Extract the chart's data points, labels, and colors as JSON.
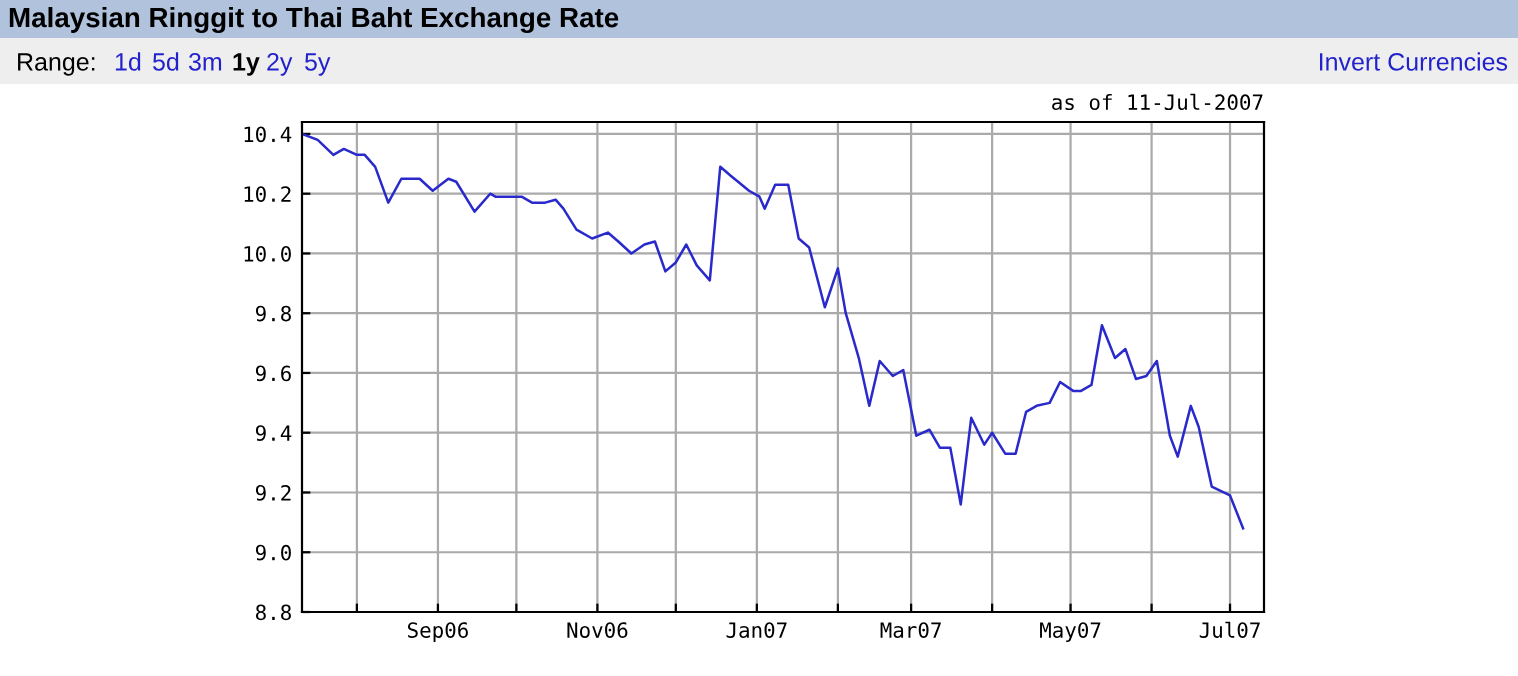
{
  "chart_data": {
    "type": "line",
    "title": "Malaysian Ringgit to Thai Baht Exchange Rate",
    "annotations": [
      "Range:",
      "1d",
      "5d",
      "3m",
      "1y",
      "2y",
      "5y",
      "Invert Currencies",
      "as of 11-Jul-2007"
    ],
    "x": [
      "2006-07-11",
      "2006-07-17",
      "2006-07-23",
      "2006-07-27",
      "2006-08-01",
      "2006-08-04",
      "2006-08-08",
      "2006-08-13",
      "2006-08-18",
      "2006-08-25",
      "2006-08-30",
      "2006-09-02",
      "2006-09-05",
      "2006-09-08",
      "2006-09-15",
      "2006-09-21",
      "2006-09-23",
      "2006-10-03",
      "2006-10-07",
      "2006-10-12",
      "2006-10-16",
      "2006-10-19",
      "2006-10-24",
      "2006-10-30",
      "2006-11-05",
      "2006-11-09",
      "2006-11-14",
      "2006-11-19",
      "2006-11-23",
      "2006-11-27",
      "2006-12-01",
      "2006-12-05",
      "2006-12-09",
      "2006-12-14",
      "2006-12-18",
      "2006-12-22",
      "2006-12-29",
      "2007-01-02",
      "2007-01-04",
      "2007-01-08",
      "2007-01-13",
      "2007-01-17",
      "2007-01-21",
      "2007-01-27",
      "2007-02-01",
      "2007-02-04",
      "2007-02-09",
      "2007-02-13",
      "2007-02-17",
      "2007-02-22",
      "2007-02-26",
      "2007-03-03",
      "2007-03-08",
      "2007-03-12",
      "2007-03-16",
      "2007-03-20",
      "2007-03-24",
      "2007-03-29",
      "2007-04-01",
      "2007-04-06",
      "2007-04-10",
      "2007-04-14",
      "2007-04-18",
      "2007-04-23",
      "2007-04-27",
      "2007-05-02",
      "2007-05-05",
      "2007-05-09",
      "2007-05-13",
      "2007-05-18",
      "2007-05-22",
      "2007-05-26",
      "2007-05-30",
      "2007-06-03",
      "2007-06-08",
      "2007-06-11",
      "2007-06-16",
      "2007-06-19",
      "2007-06-24",
      "2007-07-01",
      "2007-07-06"
    ],
    "series": [
      {
        "color": "#2a2acc",
        "values": [
          10.4,
          10.38,
          10.33,
          10.35,
          10.33,
          10.33,
          10.29,
          10.17,
          10.25,
          10.25,
          10.21,
          10.23,
          10.25,
          10.24,
          10.14,
          10.2,
          10.19,
          10.19,
          10.17,
          10.17,
          10.18,
          10.15,
          10.08,
          10.05,
          10.07,
          10.04,
          10.0,
          10.03,
          10.04,
          9.94,
          9.97,
          10.03,
          9.96,
          9.91,
          10.29,
          10.26,
          10.21,
          10.19,
          10.15,
          10.23,
          10.23,
          10.05,
          10.02,
          9.82,
          9.95,
          9.8,
          9.65,
          9.49,
          9.64,
          9.59,
          9.61,
          9.39,
          9.41,
          9.35,
          9.35,
          9.16,
          9.45,
          9.36,
          9.4,
          9.33,
          9.33,
          9.47,
          9.49,
          9.5,
          9.57,
          9.54,
          9.54,
          9.56,
          9.76,
          9.65,
          9.68,
          9.58,
          9.59,
          9.64,
          9.39,
          9.32,
          9.49,
          9.42,
          9.22,
          9.19,
          9.08
        ]
      }
    ],
    "xlim": [
      "2006-07-11",
      "2007-07-14"
    ],
    "xticks": [
      {
        "value": "2006-08-01",
        "label": null
      },
      {
        "value": "2006-09-01",
        "label": "Sep06"
      },
      {
        "value": "2006-10-01",
        "label": null
      },
      {
        "value": "2006-11-01",
        "label": "Nov06"
      },
      {
        "value": "2006-12-01",
        "label": null
      },
      {
        "value": "2007-01-01",
        "label": "Jan07"
      },
      {
        "value": "2007-02-01",
        "label": null
      },
      {
        "value": "2007-03-01",
        "label": "Mar07"
      },
      {
        "value": "2007-04-01",
        "label": null
      },
      {
        "value": "2007-05-01",
        "label": "May07"
      },
      {
        "value": "2007-06-01",
        "label": null
      },
      {
        "value": "2007-07-01",
        "label": "Jul07"
      }
    ],
    "ylim": [
      8.8,
      10.44
    ],
    "yticks": [
      {
        "value": 8.8,
        "label": "8.8"
      },
      {
        "value": 9.0,
        "label": "9.0"
      },
      {
        "value": 9.2,
        "label": "9.2"
      },
      {
        "value": 9.4,
        "label": "9.4"
      },
      {
        "value": 9.6,
        "label": "9.6"
      },
      {
        "value": 9.8,
        "label": "9.8"
      },
      {
        "value": 10.0,
        "label": "10.0"
      },
      {
        "value": 10.2,
        "label": "10.2"
      },
      {
        "value": 10.4,
        "label": "10.4"
      }
    ],
    "grid": true
  }
}
